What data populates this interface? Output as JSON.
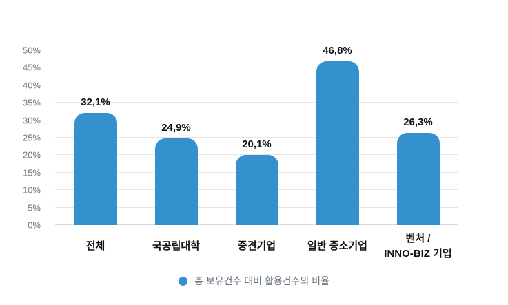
{
  "chart_data": {
    "type": "bar",
    "title": "",
    "categories": [
      "전체",
      "국공립대학",
      "중견기업",
      "일반 중소기업",
      "벤처 /\nINNO-BIZ 기업"
    ],
    "values": [
      32.1,
      24.9,
      20.1,
      46.8,
      26.3
    ],
    "value_labels": [
      "32,1%",
      "24,9%",
      "20,1%",
      "46,8%",
      "26,3%"
    ],
    "xlabel": "",
    "ylabel": "",
    "ylim": [
      0,
      50
    ],
    "ytick_step": 5,
    "ytick_labels": [
      "0%",
      "5%",
      "10%",
      "15%",
      "20%",
      "25%",
      "30%",
      "35%",
      "40%",
      "45%",
      "50%"
    ],
    "grid": true,
    "legend": {
      "position": "bottom",
      "label": "총 보유건수 대비 활용건수의 비율"
    },
    "colors": {
      "bar": "#3590CE",
      "legend_marker": "#3590CE",
      "gridline": "#e5e5e5",
      "baseline": "#d9d9d9",
      "ytick_text": "#767676",
      "value_text": "#111111",
      "category_text": "#111111",
      "legend_text": "#6b7684",
      "background": "#ffffff"
    }
  }
}
